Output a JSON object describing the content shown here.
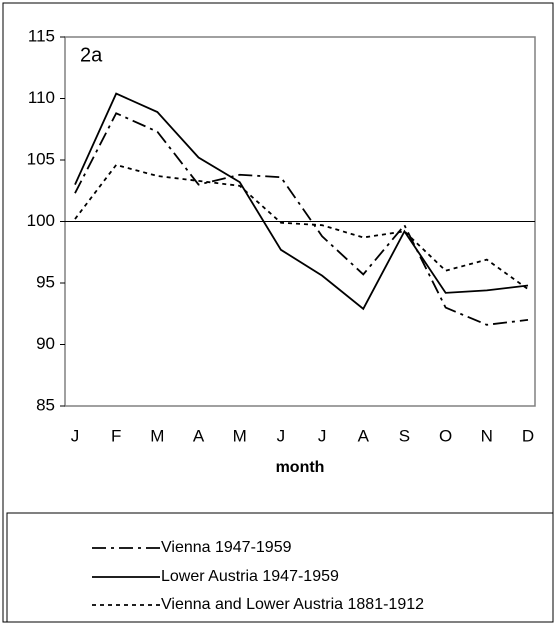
{
  "chart_data": {
    "type": "line",
    "annotation": "2a",
    "x_label": "month",
    "categories": [
      "J",
      "F",
      "M",
      "A",
      "M",
      "J",
      "J",
      "A",
      "S",
      "O",
      "N",
      "D"
    ],
    "series": [
      {
        "name": "Vienna 1947-1959",
        "color": "#000000",
        "dash": "14 5 3 5",
        "values": [
          102.3,
          108.8,
          107.3,
          103.0,
          103.8,
          103.6,
          98.8,
          95.7,
          99.7,
          93.0,
          91.6,
          92.0
        ]
      },
      {
        "name": "Lower Austria 1947-1959",
        "color": "#000000",
        "dash": "none",
        "values": [
          103.0,
          110.4,
          108.9,
          105.2,
          103.2,
          97.7,
          95.6,
          92.9,
          99.2,
          94.2,
          94.4,
          94.8
        ]
      },
      {
        "name": "Vienna and Lower Austria 1881-1912",
        "color": "#000000",
        "dash": "4 4",
        "values": [
          100.2,
          104.6,
          103.7,
          103.3,
          102.9,
          99.9,
          99.7,
          98.7,
          99.2,
          96.0,
          96.9,
          94.5
        ]
      }
    ],
    "ylim": [
      85,
      115
    ],
    "yticks": [
      85,
      90,
      95,
      100,
      105,
      110,
      115
    ],
    "reference_line": 100,
    "grid": false
  }
}
